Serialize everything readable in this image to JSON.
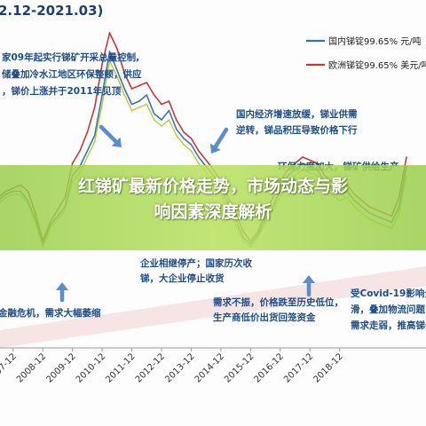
{
  "page": {
    "title_fragment": "2.12-2021.03)",
    "headline_line1": "红锑矿最新价格走势，市场动态与影",
    "headline_line2": "响因素深度解析"
  },
  "colors": {
    "series_china": "#3b73b9",
    "series_europe": "#c0393d",
    "series_green": "#b5c93a",
    "annotation_text": "#1f4e86",
    "arrow": "#5b8ec9",
    "banner": "#9fd35a",
    "band": "#f3d0d0"
  },
  "annotations": [
    {
      "id": "a1",
      "lines": [
        "家09年起实行锑矿开采总量控制,",
        "储叠加冷水江地区环保整顿，供应",
        "，锑价上涨并于2011年见顶"
      ]
    },
    {
      "id": "a2",
      "lines": [
        "国内经济增速放缓，锑业供需",
        "逆转，锑品积压导致价格下行"
      ]
    },
    {
      "id": "a3",
      "lines": [
        "环保力度加大，锑矿供给生产",
        "受限，"
      ]
    },
    {
      "id": "a4",
      "lines": [
        "企业相继停产；国家历次收",
        "锑，大企业停止收货"
      ]
    },
    {
      "id": "a5",
      "lines": [
        "金融危机，需求大幅萎缩"
      ]
    },
    {
      "id": "a6",
      "lines": [
        "需求不振，价格跌至历史低位，",
        "生产商低价出货回笼资金"
      ]
    },
    {
      "id": "a7",
      "lines": [
        "受Covid-19影响全",
        "滑，叠加物流问题，",
        "需求走弱，推高锑价"
      ]
    }
  ],
  "chart_data": {
    "type": "line",
    "title": "2.12-2021.03)",
    "xlabel": "",
    "ylabel": "",
    "grid": false,
    "legend_position": "top-right",
    "x": [
      "2007-06",
      "2007-09",
      "2007-12",
      "2008-03",
      "2008-06",
      "2008-09",
      "2008-12",
      "2009-03",
      "2009-06",
      "2009-09",
      "2009-12",
      "2010-03",
      "2010-06",
      "2010-09",
      "2010-12",
      "2011-03",
      "2011-06",
      "2011-09",
      "2011-12",
      "2012-03",
      "2012-06",
      "2012-09",
      "2012-12",
      "2013-03",
      "2013-06",
      "2013-09",
      "2013-12",
      "2014-03",
      "2014-06",
      "2014-09",
      "2014-12",
      "2015-03",
      "2015-06",
      "2015-09",
      "2015-12",
      "2016-03",
      "2016-06",
      "2016-09",
      "2016-12",
      "2017-03",
      "2017-06",
      "2017-09",
      "2017-12",
      "2018-03",
      "2018-06",
      "2018-09",
      "2018-12",
      "2019-03",
      "2019-06",
      "2019-09",
      "2019-12",
      "2020-03",
      "2020-06",
      "2020-09",
      "2020-12",
      "2021-03"
    ],
    "xticks": [
      "2007-12",
      "2008-12",
      "2009-12",
      "2010-12",
      "2011-12",
      "2012-12",
      "2013-12",
      "2014-12",
      "2015-12",
      "2016-12",
      "2017-12",
      "2018-12"
    ],
    "series": [
      {
        "name": "国内锑锭99.65% 元/吨",
        "values": [
          44,
          46,
          47,
          47,
          44,
          38,
          30,
          36,
          39,
          42,
          52,
          55,
          60,
          65,
          78,
          92,
          86,
          80,
          75,
          76,
          78,
          72,
          70,
          73,
          67,
          64,
          62,
          58,
          55,
          52,
          48,
          43,
          38,
          32,
          30,
          33,
          38,
          42,
          47,
          52,
          54,
          56,
          55,
          54,
          50,
          48,
          46,
          47,
          44,
          42,
          40,
          39,
          38,
          37,
          42,
          55
        ]
      },
      {
        "name": "欧洲锑锭99.65% 美元/吨",
        "values": [
          45,
          47,
          48,
          49,
          47,
          40,
          31,
          37,
          41,
          45,
          56,
          60,
          66,
          74,
          88,
          98,
          93,
          85,
          80,
          81,
          82,
          78,
          75,
          76,
          70,
          66,
          64,
          60,
          57,
          54,
          50,
          45,
          40,
          34,
          31,
          34,
          40,
          45,
          50,
          54,
          56,
          58,
          57,
          56,
          52,
          50,
          48,
          49,
          46,
          44,
          42,
          41,
          40,
          39,
          45,
          58
        ]
      },
      {
        "name": "",
        "values": [
          43,
          45,
          46,
          46,
          43,
          37,
          29,
          35,
          38,
          41,
          50,
          53,
          58,
          63,
          75,
          89,
          84,
          78,
          73,
          74,
          75,
          70,
          68,
          70,
          65,
          62,
          60,
          56,
          53,
          50,
          46,
          41,
          36,
          31,
          29,
          32,
          37,
          41,
          45,
          50,
          52,
          54,
          53,
          52,
          48,
          46,
          44,
          45,
          42,
          40,
          38,
          37,
          36,
          35,
          40,
          52
        ]
      }
    ]
  }
}
